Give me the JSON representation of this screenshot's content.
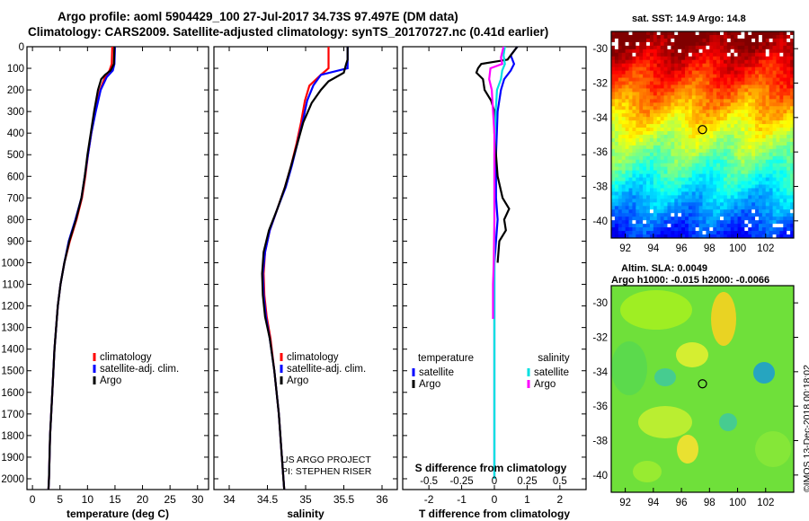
{
  "title": {
    "line1": "Argo profile: aoml 5904429_100 27-Jul-2017 34.73S 97.497E (DM data)",
    "line2": "Climatology: CARS2009. Satellite-adjusted climatology: synTS_20170727.nc (0.41d earlier)"
  },
  "colors": {
    "climatology": "#ff0000",
    "satellite_adj": "#0000ff",
    "argo": "#000000",
    "salinity_argo": "#ff00ff",
    "salinity_sat": "#00e0e0"
  },
  "map_top": {
    "title": "sat. SST: 14.9 Argo: 14.8",
    "xticks": [
      "92",
      "94",
      "96",
      "98",
      "100",
      "102"
    ],
    "yticks": [
      "-30",
      "-32",
      "-34",
      "-36",
      "-38",
      "-40"
    ]
  },
  "map_bottom": {
    "title_line1": "Altim. SLA: 0.0049",
    "title_line2": "Argo h1000: -0.015 h2000: -0.0066",
    "xticks": [
      "92",
      "94",
      "96",
      "98",
      "100",
      "102"
    ],
    "yticks": [
      "-30",
      "-32",
      "-34",
      "-36",
      "-38",
      "-40"
    ]
  },
  "credits": {
    "project": "US ARGO PROJECT",
    "pi": "PI: STEPHEN RISER",
    "imos": "©IMOS 13-Dec-2018 00:18:02"
  },
  "chart_data": [
    {
      "type": "line",
      "title": "",
      "xlabel": "temperature (deg C)",
      "ylabel": "",
      "xlim": [
        -1,
        32
      ],
      "ylim": [
        2050,
        0
      ],
      "xticks": [
        0,
        5,
        10,
        15,
        20,
        25,
        30
      ],
      "yticks": [
        0,
        100,
        200,
        300,
        400,
        500,
        600,
        700,
        800,
        900,
        1000,
        1100,
        1200,
        1300,
        1400,
        1500,
        1600,
        1700,
        1800,
        1900,
        2000
      ],
      "legend": [
        "climatology",
        "satellite-adj. clim.",
        "Argo"
      ],
      "series": [
        {
          "name": "climatology",
          "depth": [
            0,
            80,
            110,
            140,
            200,
            300,
            400,
            500,
            600,
            700,
            800,
            900,
            1000,
            1100,
            1200,
            1400,
            1600,
            1800,
            2000,
            2050
          ],
          "values": [
            14.5,
            14.4,
            14.0,
            13.2,
            12.3,
            11.4,
            10.7,
            10.1,
            9.6,
            9.0,
            8.0,
            6.8,
            5.8,
            5.1,
            4.6,
            4.0,
            3.6,
            3.2,
            3.0,
            2.9
          ]
        },
        {
          "name": "satellite-adj. clim.",
          "depth": [
            0,
            80,
            110,
            140,
            200,
            300,
            400,
            500,
            600,
            700,
            800,
            900,
            1000,
            1100,
            1200,
            1400,
            1600,
            1800,
            2000,
            2050
          ],
          "values": [
            15.0,
            14.9,
            14.6,
            13.5,
            12.4,
            11.5,
            10.7,
            10.1,
            9.5,
            8.9,
            7.8,
            6.6,
            5.8,
            5.1,
            4.6,
            4.0,
            3.6,
            3.2,
            3.0,
            2.9
          ]
        },
        {
          "name": "Argo",
          "depth": [
            0,
            80,
            110,
            130,
            150,
            200,
            300,
            400,
            500,
            600,
            700,
            800,
            900,
            1000,
            1100,
            1200,
            1400,
            1600,
            1800,
            2000,
            2050
          ],
          "values": [
            14.9,
            14.8,
            14.2,
            13.2,
            12.5,
            11.9,
            11.2,
            10.6,
            10.0,
            9.5,
            8.9,
            7.9,
            6.7,
            5.8,
            5.1,
            4.6,
            4.0,
            3.6,
            3.2,
            3.0,
            2.9
          ]
        }
      ]
    },
    {
      "type": "line",
      "title": "",
      "xlabel": "salinity",
      "ylabel": "",
      "xlim": [
        33.8,
        36.2
      ],
      "ylim": [
        2050,
        0
      ],
      "xticks": [
        34,
        34.5,
        35,
        35.5,
        36
      ],
      "xticklabels": [
        "34",
        "34.5",
        "35",
        "35.5",
        "36"
      ],
      "legend": [
        "climatology",
        "satellite-adj. clim.",
        "Argo"
      ],
      "series": [
        {
          "name": "climatology",
          "depth": [
            0,
            100,
            130,
            180,
            250,
            350,
            450,
            550,
            650,
            750,
            850,
            950,
            1050,
            1150,
            1250,
            1350,
            1500,
            1700,
            1900,
            2050
          ],
          "values": [
            35.3,
            35.3,
            35.2,
            35.05,
            34.99,
            34.94,
            34.88,
            34.81,
            34.73,
            34.63,
            34.53,
            34.47,
            34.45,
            34.46,
            34.49,
            34.54,
            34.59,
            34.65,
            34.69,
            34.72
          ]
        },
        {
          "name": "satellite-adj. clim.",
          "depth": [
            0,
            100,
            130,
            180,
            250,
            350,
            450,
            550,
            650,
            750,
            850,
            950,
            1050,
            1150,
            1250,
            1350,
            1500,
            1700,
            1900,
            2050
          ],
          "values": [
            35.55,
            35.55,
            35.2,
            35.1,
            35.02,
            34.96,
            34.89,
            34.82,
            34.74,
            34.63,
            34.53,
            34.47,
            34.44,
            34.45,
            34.48,
            34.53,
            34.59,
            34.65,
            34.69,
            34.72
          ]
        },
        {
          "name": "Argo",
          "depth": [
            0,
            60,
            80,
            120,
            160,
            200,
            260,
            350,
            450,
            550,
            650,
            750,
            850,
            950,
            1050,
            1150,
            1250,
            1350,
            1500,
            1700,
            1900,
            2050
          ],
          "values": [
            35.55,
            35.55,
            35.53,
            35.5,
            35.3,
            35.2,
            35.08,
            34.97,
            34.89,
            34.81,
            34.73,
            34.63,
            34.52,
            34.45,
            34.43,
            34.44,
            34.47,
            34.53,
            34.59,
            34.65,
            34.69,
            34.72
          ]
        }
      ]
    },
    {
      "type": "line",
      "title": "",
      "xlabel": "T difference from climatology",
      "xlabel_secondary": "S difference from climatology",
      "xlim": [
        -2.8,
        2.8
      ],
      "ylim": [
        2050,
        0
      ],
      "xticks": [
        -2,
        -1,
        0,
        1,
        2
      ],
      "xticks_secondary": [
        "-0.5",
        "-0.25",
        "0",
        "0.25",
        "0.5"
      ],
      "legend": {
        "temperature": [
          "satellite",
          "Argo"
        ],
        "salinity": [
          "satellite",
          "Argo"
        ],
        "temperature_title": "temperature",
        "salinity_title": "salinity"
      },
      "series": [
        {
          "name": "temperature satellite",
          "depth": [
            0,
            40,
            80,
            110,
            150,
            200,
            300,
            500,
            700,
            800,
            1000,
            1200,
            1500,
            1800,
            2000
          ],
          "values": [
            0.7,
            0.5,
            0.6,
            0.5,
            0.3,
            0.2,
            0.1,
            0.05,
            0.05,
            0.1,
            0.0,
            0.0,
            0.0,
            0.0,
            0.0
          ]
        },
        {
          "name": "temperature Argo",
          "depth": [
            0,
            40,
            60,
            80,
            100,
            120,
            150,
            200,
            250,
            300,
            400,
            500,
            600,
            700,
            750,
            800,
            850,
            900,
            1000
          ],
          "values": [
            0.7,
            0.5,
            0.4,
            -0.4,
            -0.5,
            -0.55,
            -0.35,
            -0.3,
            -0.1,
            0.0,
            0.0,
            0.05,
            0.1,
            0.25,
            0.45,
            0.3,
            0.35,
            0.15,
            0.1
          ]
        },
        {
          "name": "salinity satellite",
          "depth": [
            0,
            40,
            80,
            110,
            150,
            200,
            300,
            500,
            700,
            900,
            1100,
            1300,
            1500,
            1700,
            1900,
            2000
          ],
          "values": [
            0.08,
            0.07,
            0.08,
            0.06,
            0.05,
            0.02,
            0.01,
            0.0,
            0.0,
            0.0,
            0.0,
            0.0,
            0.0,
            0.0,
            0.0,
            0.0
          ]
        },
        {
          "name": "salinity Argo",
          "depth": [
            0,
            50,
            80,
            100,
            150,
            200,
            300,
            400,
            600,
            800,
            1000,
            1100,
            1200,
            1260
          ],
          "values": [
            0.07,
            0.05,
            0.06,
            -0.03,
            -0.04,
            -0.02,
            -0.01,
            0.0,
            0.0,
            0.0,
            -0.005,
            -0.01,
            -0.01,
            -0.01
          ]
        }
      ]
    },
    {
      "type": "heatmap",
      "title": "sat. SST: 14.9 Argo: 14.8",
      "xlim": [
        91,
        104
      ],
      "ylim": [
        -41,
        -29
      ],
      "xticks": [
        92,
        94,
        96,
        98,
        100,
        102
      ],
      "yticks": [
        -30,
        -32,
        -34,
        -36,
        -38,
        -40
      ],
      "marker": {
        "lon": 97.5,
        "lat": -34.7
      },
      "field": "sea surface temperature"
    },
    {
      "type": "heatmap",
      "title": "Altim. SLA: 0.0049",
      "xlim": [
        91,
        104
      ],
      "ylim": [
        -41,
        -29
      ],
      "xticks": [
        92,
        94,
        96,
        98,
        100,
        102
      ],
      "yticks": [
        -30,
        -32,
        -34,
        -36,
        -38,
        -40
      ],
      "marker": {
        "lon": 97.5,
        "lat": -34.7
      },
      "field": "sea level anomaly"
    }
  ]
}
